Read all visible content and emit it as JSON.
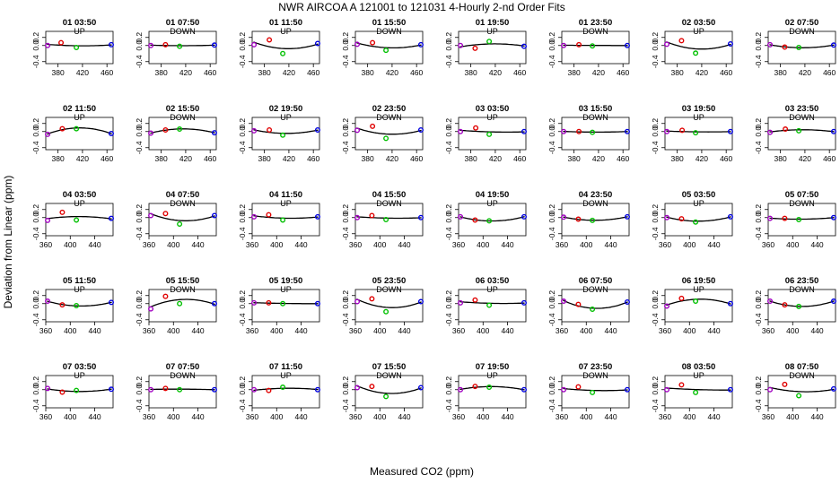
{
  "title": "NWR   AIRCOA A   121001 to 121031   4-Hourly 2-nd Order Fits",
  "xlabel": "Measured CO2 (ppm)",
  "ylabel": "Deviation from Linear (ppm)",
  "colors": {
    "p1": "#a000c0",
    "p2": "#e00000",
    "p3": "#00c000",
    "p4": "#0000e0",
    "curve": "#000000"
  },
  "chart_data": {
    "type": "scatter",
    "grid": "8x5 small multiples",
    "xlim": [
      360,
      470
    ],
    "ylim": [
      -0.45,
      0.35
    ],
    "panels": [
      {
        "label": "01 03:50",
        "dir": "UP",
        "xt": [
          "380",
          "420",
          "460"
        ],
        "x": [
          363,
          385,
          410,
          467
        ],
        "y": [
          0.0,
          0.07,
          -0.05,
          0.02
        ]
      },
      {
        "label": "01 07:50",
        "dir": "DOWN",
        "xt": [
          "380",
          "420",
          "460"
        ],
        "x": [
          363,
          387,
          410,
          467
        ],
        "y": [
          0.0,
          0.02,
          -0.02,
          0.01
        ]
      },
      {
        "label": "01 11:50",
        "dir": "UP",
        "xt": [
          "380",
          "420",
          "460"
        ],
        "x": [
          363,
          388,
          410,
          467
        ],
        "y": [
          0.02,
          0.14,
          -0.2,
          0.05
        ]
      },
      {
        "label": "01 15:50",
        "dir": "DOWN",
        "xt": [
          "380",
          "420",
          "460"
        ],
        "x": [
          363,
          388,
          410,
          467
        ],
        "y": [
          0.03,
          0.07,
          -0.12,
          0.02
        ]
      },
      {
        "label": "01 19:50",
        "dir": "UP",
        "xt": [
          "380",
          "420",
          "460"
        ],
        "x": [
          363,
          387,
          410,
          467
        ],
        "y": [
          0.0,
          -0.07,
          0.1,
          -0.02
        ]
      },
      {
        "label": "01 23:50",
        "dir": "DOWN",
        "xt": [
          "380",
          "420",
          "460"
        ],
        "x": [
          363,
          388,
          410,
          467
        ],
        "y": [
          0.0,
          0.02,
          -0.01,
          0.0
        ]
      },
      {
        "label": "02 03:50",
        "dir": "UP",
        "xt": [
          "380",
          "420",
          "460"
        ],
        "x": [
          363,
          387,
          410,
          467
        ],
        "y": [
          0.03,
          0.12,
          -0.19,
          0.04
        ]
      },
      {
        "label": "02 07:50",
        "dir": "DOWN",
        "xt": [
          "380",
          "420",
          "460"
        ],
        "x": [
          363,
          387,
          410,
          467
        ],
        "y": [
          0.02,
          -0.04,
          -0.05,
          0.01
        ]
      },
      {
        "label": "02 11:50",
        "dir": "UP",
        "xt": [
          "380",
          "420",
          "460"
        ],
        "x": [
          363,
          387,
          410,
          467
        ],
        "y": [
          -0.07,
          0.07,
          0.07,
          -0.05
        ]
      },
      {
        "label": "02 15:50",
        "dir": "DOWN",
        "xt": [
          "380",
          "420",
          "460"
        ],
        "x": [
          363,
          387,
          410,
          467
        ],
        "y": [
          -0.04,
          0.04,
          0.06,
          -0.03
        ]
      },
      {
        "label": "02 19:50",
        "dir": "UP",
        "xt": [
          "380",
          "420",
          "460"
        ],
        "x": [
          363,
          388,
          410,
          467
        ],
        "y": [
          0.02,
          0.04,
          -0.09,
          0.04
        ]
      },
      {
        "label": "02 23:50",
        "dir": "DOWN",
        "xt": [
          "380",
          "420",
          "460"
        ],
        "x": [
          363,
          388,
          410,
          467
        ],
        "y": [
          0.03,
          0.13,
          -0.17,
          0.04
        ]
      },
      {
        "label": "03 03:50",
        "dir": "UP",
        "xt": [
          "380",
          "420",
          "460"
        ],
        "x": [
          363,
          388,
          410,
          467
        ],
        "y": [
          0.0,
          0.09,
          -0.07,
          0.0
        ]
      },
      {
        "label": "03 15:50",
        "dir": "DOWN",
        "xt": [
          "380",
          "420",
          "460"
        ],
        "x": [
          363,
          388,
          410,
          467
        ],
        "y": [
          0.0,
          0.0,
          -0.02,
          0.0
        ]
      },
      {
        "label": "03 19:50",
        "dir": "UP",
        "xt": [
          "380",
          "420",
          "460"
        ],
        "x": [
          363,
          388,
          410,
          467
        ],
        "y": [
          0.0,
          0.03,
          -0.03,
          0.0
        ]
      },
      {
        "label": "03 23:50",
        "dir": "DOWN",
        "xt": [
          "380",
          "420",
          "460"
        ],
        "x": [
          363,
          388,
          410,
          467
        ],
        "y": [
          -0.02,
          0.06,
          0.02,
          0.0
        ]
      },
      {
        "label": "04 03:50",
        "dir": "UP",
        "xt": [
          "360",
          "400",
          "440"
        ],
        "x": [
          363,
          387,
          410,
          467
        ],
        "y": [
          -0.07,
          0.13,
          -0.06,
          -0.02
        ]
      },
      {
        "label": "04 07:50",
        "dir": "DOWN",
        "xt": [
          "360",
          "400",
          "440"
        ],
        "x": [
          363,
          387,
          410,
          467
        ],
        "y": [
          0.05,
          0.1,
          -0.16,
          0.05
        ]
      },
      {
        "label": "04 11:50",
        "dir": "UP",
        "xt": [
          "360",
          "400",
          "440"
        ],
        "x": [
          363,
          387,
          410,
          467
        ],
        "y": [
          0.02,
          0.07,
          -0.06,
          0.02
        ]
      },
      {
        "label": "04 15:50",
        "dir": "DOWN",
        "xt": [
          "360",
          "400",
          "440"
        ],
        "x": [
          363,
          387,
          410,
          467
        ],
        "y": [
          0.0,
          0.05,
          -0.05,
          0.0
        ]
      },
      {
        "label": "04 19:50",
        "dir": "UP",
        "xt": [
          "360",
          "400",
          "440"
        ],
        "x": [
          363,
          387,
          410,
          467
        ],
        "y": [
          0.02,
          -0.06,
          -0.08,
          0.02
        ]
      },
      {
        "label": "04 23:50",
        "dir": "DOWN",
        "xt": [
          "360",
          "400",
          "440"
        ],
        "x": [
          363,
          387,
          410,
          467
        ],
        "y": [
          0.01,
          -0.04,
          -0.07,
          0.02
        ]
      },
      {
        "label": "05 03:50",
        "dir": "UP",
        "xt": [
          "360",
          "400",
          "440"
        ],
        "x": [
          363,
          387,
          410,
          467
        ],
        "y": [
          0.0,
          -0.03,
          -0.11,
          0.02
        ]
      },
      {
        "label": "05 07:50",
        "dir": "DOWN",
        "xt": [
          "360",
          "400",
          "440"
        ],
        "x": [
          363,
          387,
          410,
          467
        ],
        "y": [
          -0.02,
          -0.02,
          -0.05,
          0.0
        ]
      },
      {
        "label": "05 11:50",
        "dir": "UP",
        "xt": [
          "360",
          "400",
          "440"
        ],
        "x": [
          363,
          387,
          410,
          467
        ],
        "y": [
          0.06,
          -0.03,
          -0.05,
          0.03
        ]
      },
      {
        "label": "05 15:50",
        "dir": "DOWN",
        "xt": [
          "360",
          "400",
          "440"
        ],
        "x": [
          363,
          387,
          410,
          467
        ],
        "y": [
          -0.13,
          0.18,
          0.0,
          0.0
        ]
      },
      {
        "label": "05 19:50",
        "dir": "UP",
        "xt": [
          "360",
          "400",
          "440"
        ],
        "x": [
          363,
          387,
          410,
          467
        ],
        "y": [
          0.02,
          0.02,
          0.0,
          0.0
        ]
      },
      {
        "label": "05 23:50",
        "dir": "DOWN",
        "xt": [
          "360",
          "400",
          "440"
        ],
        "x": [
          363,
          387,
          410,
          467
        ],
        "y": [
          0.05,
          0.12,
          -0.2,
          0.05
        ]
      },
      {
        "label": "06 03:50",
        "dir": "UP",
        "xt": [
          "360",
          "400",
          "440"
        ],
        "x": [
          363,
          387,
          410,
          467
        ],
        "y": [
          0.02,
          0.09,
          -0.04,
          0.02
        ]
      },
      {
        "label": "06 07:50",
        "dir": "DOWN",
        "xt": [
          "360",
          "400",
          "440"
        ],
        "x": [
          363,
          387,
          410,
          467
        ],
        "y": [
          0.06,
          -0.02,
          -0.14,
          0.04
        ]
      },
      {
        "label": "06 19:50",
        "dir": "UP",
        "xt": [
          "360",
          "400",
          "440"
        ],
        "x": [
          363,
          387,
          410,
          467
        ],
        "y": [
          -0.06,
          0.13,
          0.06,
          0.0
        ]
      },
      {
        "label": "06 23:50",
        "dir": "DOWN",
        "xt": [
          "360",
          "400",
          "440"
        ],
        "x": [
          363,
          387,
          410,
          467
        ],
        "y": [
          0.06,
          -0.03,
          -0.07,
          0.06
        ]
      },
      {
        "label": "07 03:50",
        "dir": "UP",
        "xt": [
          "360",
          "400",
          "440"
        ],
        "x": [
          363,
          387,
          410,
          467
        ],
        "y": [
          0.03,
          -0.06,
          -0.02,
          0.01
        ]
      },
      {
        "label": "07 07:50",
        "dir": "DOWN",
        "xt": [
          "360",
          "400",
          "440"
        ],
        "x": [
          363,
          387,
          410,
          467
        ],
        "y": [
          0.0,
          0.03,
          0.0,
          0.0
        ]
      },
      {
        "label": "07 11:50",
        "dir": "UP",
        "xt": [
          "360",
          "400",
          "440"
        ],
        "x": [
          363,
          387,
          410,
          467
        ],
        "y": [
          0.0,
          -0.02,
          0.06,
          0.0
        ]
      },
      {
        "label": "07 15:50",
        "dir": "DOWN",
        "xt": [
          "360",
          "400",
          "440"
        ],
        "x": [
          363,
          387,
          410,
          467
        ],
        "y": [
          0.05,
          0.08,
          -0.17,
          0.05
        ]
      },
      {
        "label": "07 19:50",
        "dir": "UP",
        "xt": [
          "360",
          "400",
          "440"
        ],
        "x": [
          363,
          387,
          410,
          467
        ],
        "y": [
          0.0,
          0.08,
          0.06,
          0.0
        ]
      },
      {
        "label": "07 23:50",
        "dir": "DOWN",
        "xt": [
          "360",
          "400",
          "440"
        ],
        "x": [
          363,
          387,
          410,
          467
        ],
        "y": [
          0.0,
          0.07,
          -0.07,
          0.0
        ]
      },
      {
        "label": "08 03:50",
        "dir": "UP",
        "xt": [
          "360",
          "400",
          "440"
        ],
        "x": [
          363,
          387,
          410,
          467
        ],
        "y": [
          0.0,
          0.12,
          -0.07,
          0.0
        ]
      },
      {
        "label": "08 07:50",
        "dir": "DOWN",
        "xt": [
          "360",
          "400",
          "440"
        ],
        "x": [
          363,
          387,
          410,
          467
        ],
        "y": [
          0.0,
          0.13,
          -0.15,
          0.02
        ]
      }
    ]
  }
}
